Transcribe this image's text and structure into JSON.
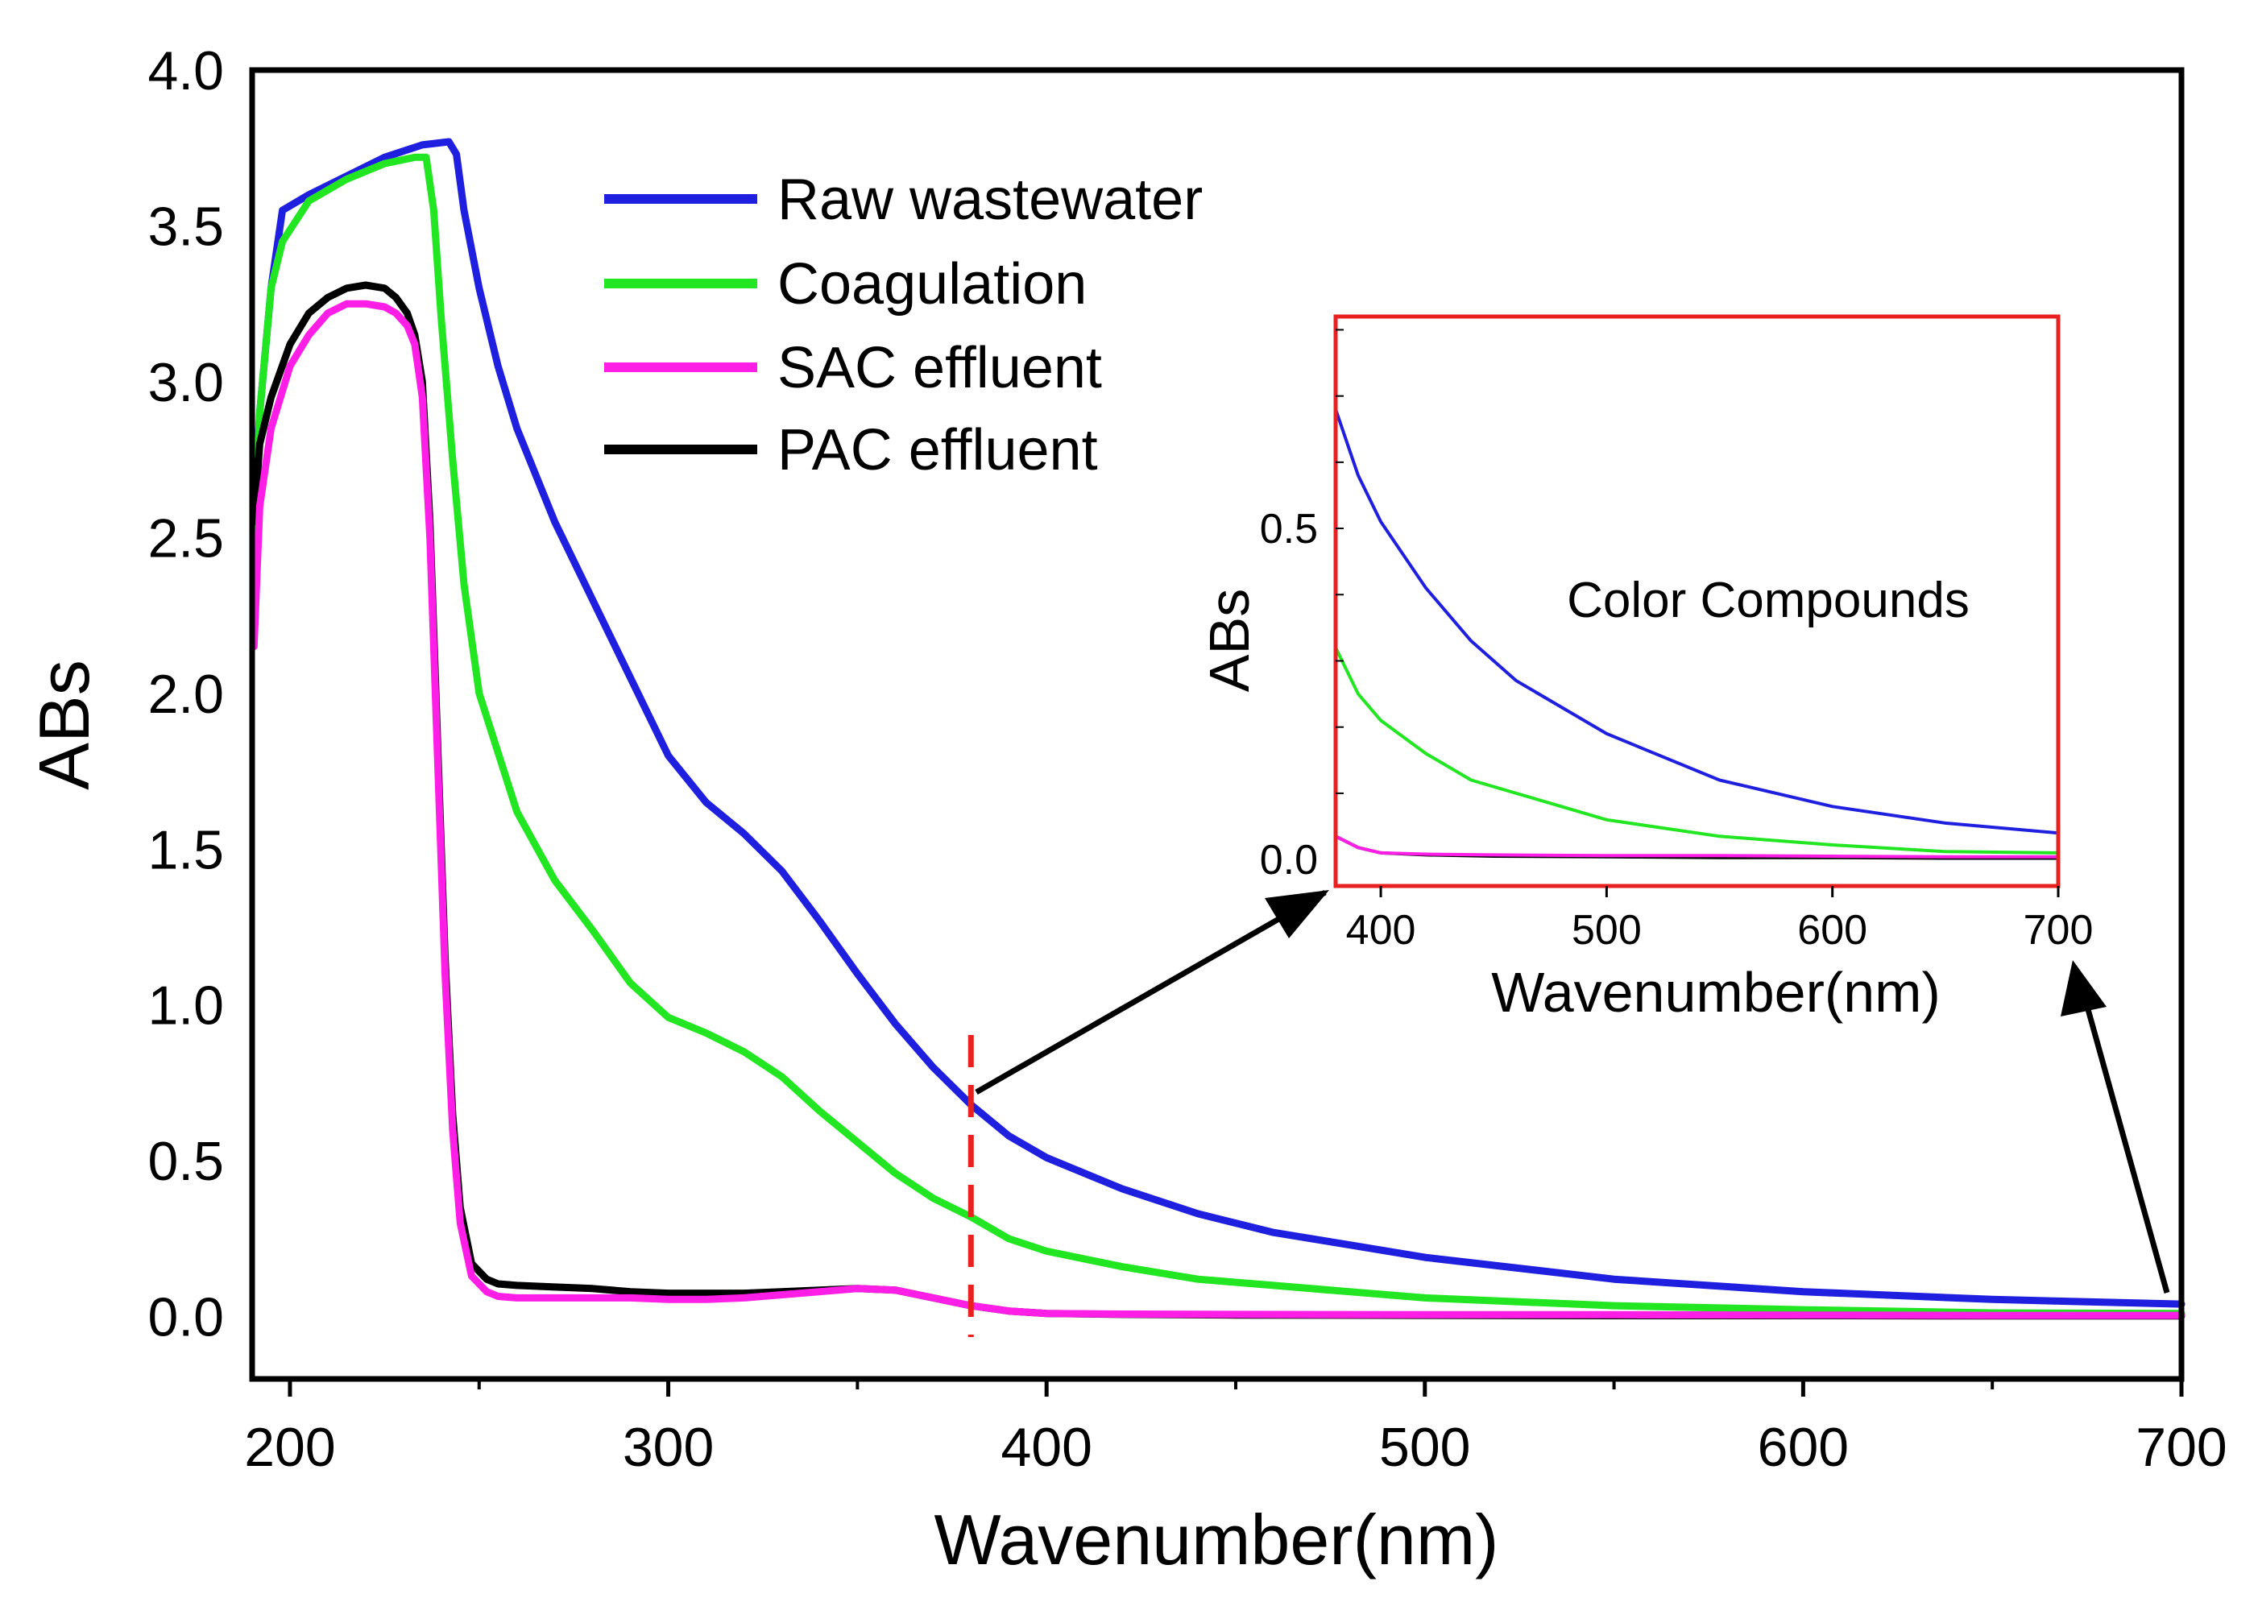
{
  "chart_data": {
    "type": "line",
    "main": {
      "xlabel": "Wavenumber(nm)",
      "ylabel": "ABs",
      "xlim": [
        190,
        700
      ],
      "ylim": [
        -0.2,
        4.0
      ],
      "xticks": [
        200,
        300,
        400,
        500,
        600,
        700
      ],
      "yticks": [
        0.0,
        0.5,
        1.0,
        1.5,
        2.0,
        2.5,
        3.0,
        3.5,
        4.0
      ],
      "ytick_labels": [
        "0.0",
        "0.5",
        "1.0",
        "1.5",
        "2.0",
        "2.5",
        "3.0",
        "3.5",
        "4.0"
      ],
      "legend_position": "top-left"
    },
    "series": [
      {
        "name": "Raw wastewater",
        "color": "#1f1fe0",
        "x": [
          190.5,
          192,
          195,
          198,
          205,
          215,
          225,
          235,
          242,
          244,
          246,
          250,
          255,
          260,
          270,
          280,
          290,
          300,
          310,
          320,
          330,
          340,
          350,
          360,
          370,
          380,
          390,
          400,
          420,
          440,
          460,
          480,
          500,
          550,
          600,
          650,
          700
        ],
        "y": [
          2.6,
          2.9,
          3.3,
          3.55,
          3.6,
          3.66,
          3.72,
          3.76,
          3.77,
          3.73,
          3.55,
          3.3,
          3.05,
          2.85,
          2.55,
          2.3,
          2.05,
          1.8,
          1.65,
          1.55,
          1.43,
          1.27,
          1.1,
          0.94,
          0.8,
          0.68,
          0.58,
          0.51,
          0.41,
          0.33,
          0.27,
          0.23,
          0.19,
          0.12,
          0.08,
          0.055,
          0.04
        ]
      },
      {
        "name": "Coagulation",
        "color": "#22e622",
        "x": [
          190.5,
          192,
          195,
          198,
          205,
          215,
          225,
          233,
          236,
          238,
          240,
          243,
          246,
          250,
          260,
          270,
          280,
          290,
          300,
          310,
          320,
          330,
          340,
          350,
          360,
          370,
          380,
          390,
          400,
          420,
          440,
          460,
          480,
          500,
          550,
          600,
          650,
          700
        ],
        "y": [
          2.5,
          2.9,
          3.3,
          3.45,
          3.58,
          3.65,
          3.7,
          3.72,
          3.72,
          3.55,
          3.2,
          2.75,
          2.35,
          2.0,
          1.62,
          1.4,
          1.24,
          1.07,
          0.96,
          0.91,
          0.85,
          0.77,
          0.66,
          0.56,
          0.46,
          0.38,
          0.32,
          0.25,
          0.21,
          0.16,
          0.12,
          0.1,
          0.08,
          0.06,
          0.035,
          0.022,
          0.012,
          0.01
        ]
      },
      {
        "name": "SAC effluent",
        "color": "#ff1ee6",
        "x": [
          190.5,
          192,
          195,
          200,
          205,
          210,
          215,
          220,
          225,
          228,
          231,
          233,
          235,
          237,
          239,
          241,
          243,
          245,
          248,
          252,
          255,
          260,
          270,
          280,
          290,
          300,
          310,
          320,
          330,
          340,
          350,
          360,
          370,
          380,
          390,
          400,
          420,
          450,
          500,
          550,
          600,
          650,
          700
        ],
        "y": [
          2.15,
          2.6,
          2.85,
          3.05,
          3.15,
          3.22,
          3.25,
          3.25,
          3.24,
          3.22,
          3.18,
          3.12,
          2.95,
          2.5,
          1.8,
          1.1,
          0.6,
          0.3,
          0.13,
          0.08,
          0.065,
          0.06,
          0.06,
          0.06,
          0.06,
          0.055,
          0.055,
          0.06,
          0.07,
          0.08,
          0.09,
          0.085,
          0.06,
          0.035,
          0.018,
          0.01,
          0.008,
          0.007,
          0.006,
          0.006,
          0.005,
          0.004,
          0.004
        ]
      },
      {
        "name": "PAC effluent",
        "color": "#000000",
        "x": [
          190.5,
          192,
          195,
          200,
          205,
          210,
          215,
          220,
          225,
          228,
          231,
          233,
          235,
          237,
          239,
          241,
          243,
          245,
          248,
          252,
          255,
          260,
          270,
          280,
          290,
          300,
          310,
          320,
          330,
          340,
          350,
          360,
          370,
          380,
          390,
          400,
          420,
          450,
          500,
          550,
          600,
          650,
          700
        ],
        "y": [
          2.55,
          2.8,
          2.95,
          3.12,
          3.22,
          3.27,
          3.3,
          3.31,
          3.3,
          3.27,
          3.22,
          3.15,
          3.0,
          2.55,
          1.85,
          1.15,
          0.65,
          0.35,
          0.17,
          0.12,
          0.105,
          0.1,
          0.095,
          0.09,
          0.08,
          0.075,
          0.075,
          0.075,
          0.08,
          0.085,
          0.09,
          0.085,
          0.06,
          0.035,
          0.018,
          0.01,
          0.007,
          0.005,
          0.004,
          0.003,
          0.003,
          0.002,
          0.002
        ]
      }
    ],
    "marker": {
      "x": 380,
      "color": "#e82020",
      "style": "dashed"
    },
    "inset": {
      "xlabel": "Wavenumber(nm)",
      "ylabel": "ABs",
      "xlim": [
        380,
        700
      ],
      "ylim": [
        -0.04,
        0.82
      ],
      "xticks": [
        400,
        500,
        600,
        700
      ],
      "yticks": [
        0.0,
        0.5
      ],
      "ytick_labels": [
        "0.0",
        "0.5"
      ],
      "annotation": "Color Compounds",
      "border_color": "#e82020"
    }
  }
}
